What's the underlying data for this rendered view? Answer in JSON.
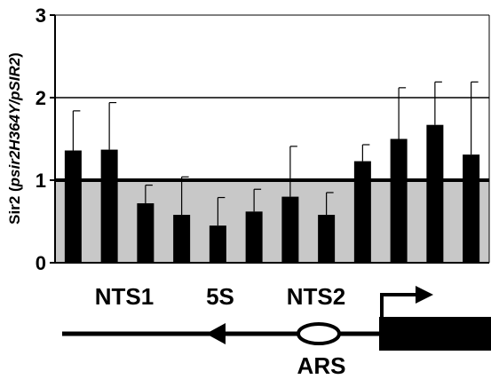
{
  "chart_data": {
    "type": "bar",
    "ylabel_prefix": "Sir2 (",
    "ylabel_italic": "psir2H364Y/pSIR2",
    "ylabel_suffix": ")",
    "ylim": [
      0,
      3
    ],
    "yticks": [
      "0",
      "1",
      "2",
      "3"
    ],
    "reference_lines": [
      1,
      2
    ],
    "shaded_below": 1,
    "values": [
      1.36,
      1.37,
      0.72,
      0.58,
      0.45,
      0.62,
      0.8,
      0.58,
      1.23,
      1.5,
      1.67,
      1.31
    ],
    "errors": [
      0.48,
      0.57,
      0.22,
      0.46,
      0.34,
      0.27,
      0.61,
      0.27,
      0.2,
      0.62,
      0.52,
      0.88
    ],
    "bar_color": "#000000",
    "shade_color": "#c8c8c8"
  },
  "map": {
    "labels": [
      "NTS1",
      "5S",
      "NTS2"
    ],
    "ars_label": "ARS"
  }
}
